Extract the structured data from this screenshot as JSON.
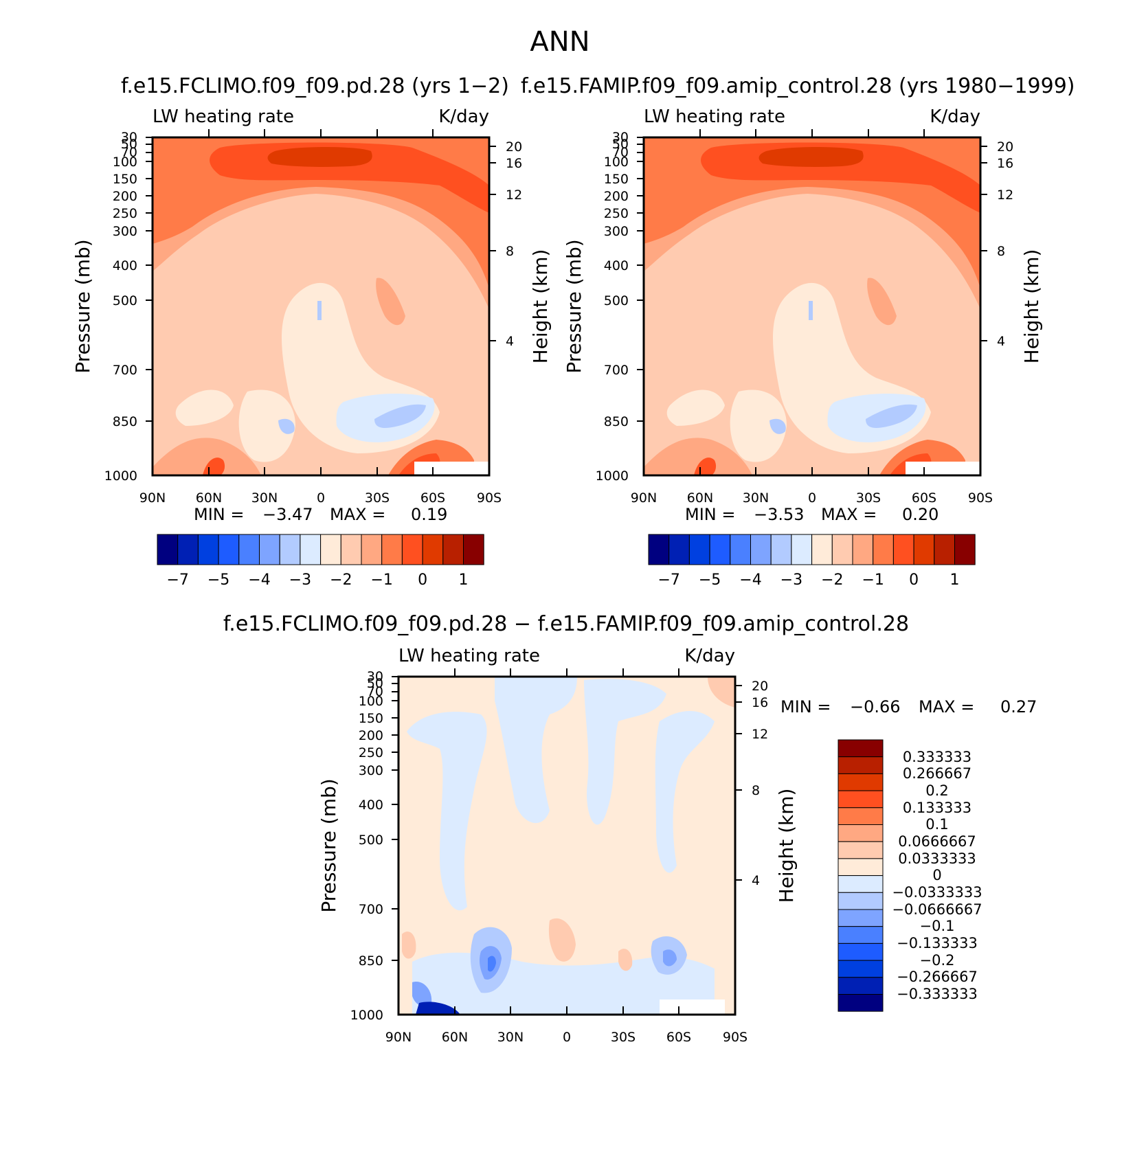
{
  "figure": {
    "title": "ANN",
    "left_title": "f.e15.FCLIMO.f09_f09.pd.28 (yrs 1−2)",
    "right_title": "f.e15.FAMIP.f09_f09.amip_control.28 (yrs 1980−1999)",
    "diff_title": "f.e15.FCLIMO.f09_f09.pd.28 − f.e15.FAMIP.f09_f09.amip_control.28"
  },
  "chart_data": [
    {
      "type": "heatmap",
      "panel": "model",
      "variable_label": "LW heating rate",
      "units_label": "K/day",
      "ylabel": "Pressure (mb)",
      "ylabel_right": "Height (km)",
      "x_ticks": [
        "90N",
        "60N",
        "30N",
        "0",
        "30S",
        "60S",
        "90S"
      ],
      "y_ticks": [
        "30",
        "50",
        "70",
        "100",
        "150",
        "200",
        "250",
        "300",
        "400",
        "500",
        "700",
        "850",
        "1000"
      ],
      "height_ticks": [
        "20",
        "16",
        "12",
        "8",
        "4"
      ],
      "min_label": "MIN =",
      "min_value": "−3.47",
      "max_label": "MAX =",
      "max_value": "0.19",
      "colorbar_labels": [
        "−7",
        "−5",
        "−4",
        "−3",
        "−2",
        "−1",
        "0",
        "1"
      ]
    },
    {
      "type": "heatmap",
      "panel": "obs",
      "variable_label": "LW heating rate",
      "units_label": "K/day",
      "ylabel": "Pressure (mb)",
      "ylabel_right": "Height (km)",
      "x_ticks": [
        "90N",
        "60N",
        "30N",
        "0",
        "30S",
        "60S",
        "90S"
      ],
      "y_ticks": [
        "30",
        "50",
        "70",
        "100",
        "150",
        "200",
        "250",
        "300",
        "400",
        "500",
        "700",
        "850",
        "1000"
      ],
      "height_ticks": [
        "20",
        "16",
        "12",
        "8",
        "4"
      ],
      "min_label": "MIN =",
      "min_value": "−3.53",
      "max_label": "MAX =",
      "max_value": "0.20",
      "colorbar_labels": [
        "−7",
        "−5",
        "−4",
        "−3",
        "−2",
        "−1",
        "0",
        "1"
      ]
    },
    {
      "type": "heatmap",
      "panel": "difference",
      "variable_label": "LW heating rate",
      "units_label": "K/day",
      "ylabel": "Pressure (mb)",
      "ylabel_right": "Height (km)",
      "x_ticks": [
        "90N",
        "60N",
        "30N",
        "0",
        "30S",
        "60S",
        "90S"
      ],
      "y_ticks": [
        "30",
        "50",
        "70",
        "100",
        "150",
        "200",
        "250",
        "300",
        "400",
        "500",
        "700",
        "850",
        "1000"
      ],
      "height_ticks": [
        "20",
        "16",
        "12",
        "8",
        "4"
      ],
      "min_label": "MIN =",
      "min_value": "−0.66",
      "max_label": "MAX =",
      "max_value": "0.27",
      "colorbar_labels": [
        "0.333333",
        "0.266667",
        "0.2",
        "0.133333",
        "0.1",
        "0.0666667",
        "0.0333333",
        "0",
        "−0.0333333",
        "−0.0666667",
        "−0.1",
        "−0.133333",
        "−0.2",
        "−0.266667",
        "−0.333333"
      ]
    }
  ],
  "colors": {
    "palette": [
      "#000080",
      "#0020b4",
      "#0040e0",
      "#1e5cff",
      "#4a80ff",
      "#7ea4ff",
      "#b2cbff",
      "#dcebff",
      "#ffebd9",
      "#ffcbb0",
      "#ffa882",
      "#ff7b48",
      "#ff5020",
      "#e03a00",
      "#b82000",
      "#880000"
    ],
    "field_peak": "#e03a00",
    "field_strong": "#ff5020",
    "field_mid": "#ff7b48",
    "field_light": "#ffa882",
    "field_pale": "#ffcbb0",
    "field_faint": "#ffebd9",
    "field_neg_faint": "#dcebff",
    "field_neg_pale": "#b2cbff",
    "field_neg_light": "#7ea4ff",
    "field_neg_mid": "#4a80ff",
    "field_neg_strong": "#1e5cff",
    "field_neg_deep": "#0020b4"
  }
}
